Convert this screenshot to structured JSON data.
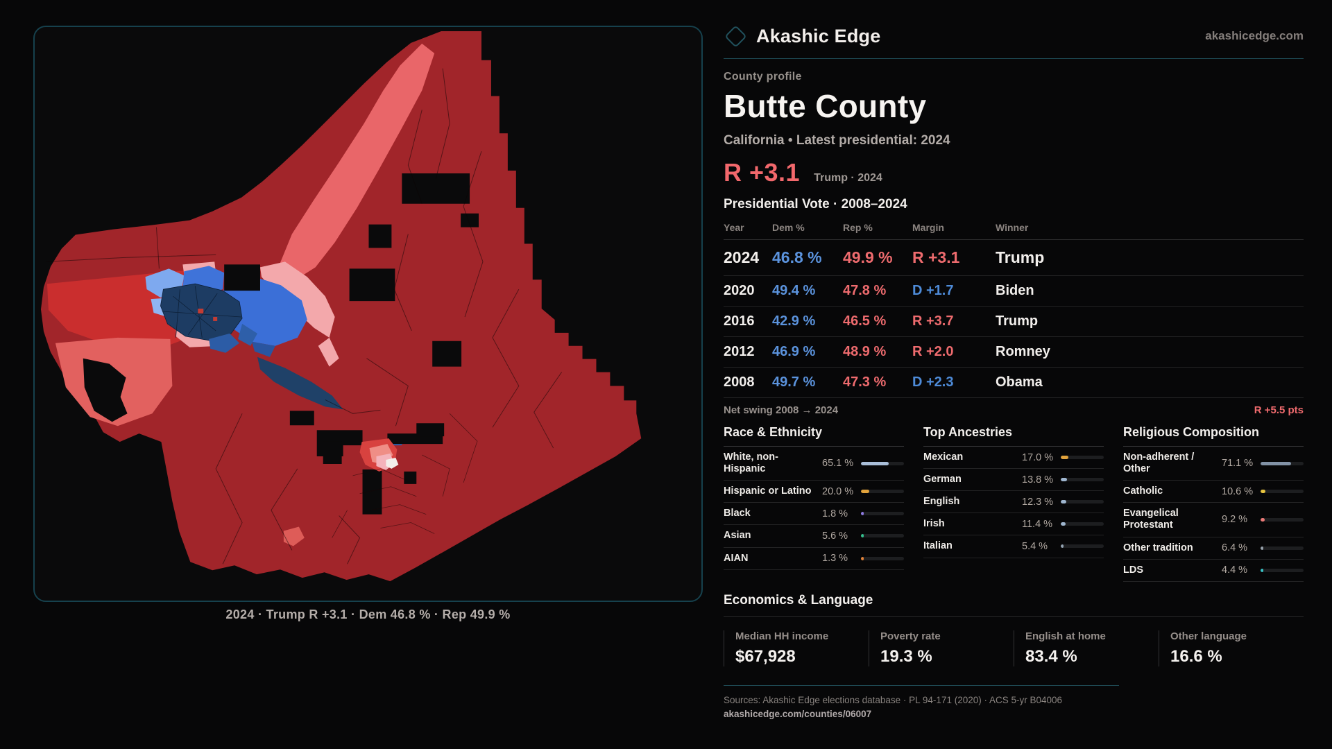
{
  "brand": {
    "name": "Akashic Edge",
    "domain": "akashicedge.com",
    "icon": "diamond-logo"
  },
  "profile": {
    "eyebrow": "County profile",
    "title": "Butte County",
    "subtitle": "California • Latest presidential: 2024",
    "margin_value": "R +3.1",
    "margin_context": "Trump · 2024"
  },
  "elections": {
    "heading": "Presidential Vote · 2008–2024",
    "columns": {
      "year": "Year",
      "dem": "Dem %",
      "rep": "Rep %",
      "margin": "Margin",
      "winner": "Winner"
    },
    "rows": [
      {
        "year": "2024",
        "dem": "46.8 %",
        "rep": "49.9 %",
        "margin": "R +3.1",
        "party": "R",
        "winner": "Trump"
      },
      {
        "year": "2020",
        "dem": "49.4 %",
        "rep": "47.8 %",
        "margin": "D +1.7",
        "party": "D",
        "winner": "Biden"
      },
      {
        "year": "2016",
        "dem": "42.9 %",
        "rep": "46.5 %",
        "margin": "R +3.7",
        "party": "R",
        "winner": "Trump"
      },
      {
        "year": "2012",
        "dem": "46.9 %",
        "rep": "48.9 %",
        "margin": "R +2.0",
        "party": "R",
        "winner": "Romney"
      },
      {
        "year": "2008",
        "dem": "49.7 %",
        "rep": "47.3 %",
        "margin": "D +2.3",
        "party": "D",
        "winner": "Obama"
      }
    ],
    "net_swing_label": "Net swing 2008 → 2024",
    "net_swing_value": "R +5.5 pts"
  },
  "race": {
    "heading": "Race & Ethnicity",
    "rows": [
      {
        "label": "White, non-Hispanic",
        "value": "65.1 %",
        "pct": 65.1,
        "color": "#a9bed8"
      },
      {
        "label": "Hispanic or Latino",
        "value": "20.0 %",
        "pct": 20.0,
        "color": "#e2a33c"
      },
      {
        "label": "Black",
        "value": "1.8 %",
        "pct": 1.8,
        "color": "#8d7ae0"
      },
      {
        "label": "Asian",
        "value": "5.6 %",
        "pct": 5.6,
        "color": "#35c08e"
      },
      {
        "label": "AIAN",
        "value": "1.3 %",
        "pct": 1.3,
        "color": "#e0823a"
      }
    ]
  },
  "ancestries": {
    "heading": "Top Ancestries",
    "rows": [
      {
        "label": "Mexican",
        "value": "17.0 %",
        "pct": 17.0,
        "color": "#e2a33c"
      },
      {
        "label": "German",
        "value": "13.8 %",
        "pct": 13.8,
        "color": "#9fb6cf"
      },
      {
        "label": "English",
        "value": "12.3 %",
        "pct": 12.3,
        "color": "#9fb6cf"
      },
      {
        "label": "Irish",
        "value": "11.4 %",
        "pct": 11.4,
        "color": "#9fb6cf"
      },
      {
        "label": "Italian",
        "value": "5.4 %",
        "pct": 5.4,
        "color": "#93a2b0"
      }
    ]
  },
  "religion": {
    "heading": "Religious Composition",
    "rows": [
      {
        "label": "Non-adherent / Other",
        "value": "71.1 %",
        "pct": 71.1,
        "color": "#8292a6"
      },
      {
        "label": "Catholic",
        "value": "10.6 %",
        "pct": 10.6,
        "color": "#e7c43f"
      },
      {
        "label": "Evangelical Protestant",
        "value": "9.2 %",
        "pct": 9.2,
        "color": "#ea7a77"
      },
      {
        "label": "Other tradition",
        "value": "6.4 %",
        "pct": 6.4,
        "color": "#97a1ab"
      },
      {
        "label": "LDS",
        "value": "4.4 %",
        "pct": 4.4,
        "color": "#39c2c5"
      }
    ]
  },
  "economics": {
    "heading": "Economics & Language",
    "stats": [
      {
        "label": "Median HH income",
        "value": "$67,928"
      },
      {
        "label": "Poverty rate",
        "value": "19.3 %"
      },
      {
        "label": "English at home",
        "value": "83.4 %"
      },
      {
        "label": "Other language",
        "value": "16.6 %"
      }
    ]
  },
  "map": {
    "caption": "2024 · Trump R +3.1 · Dem 46.8 % · Rep 49.9 %"
  },
  "footer": {
    "sources": "Sources: Akashic Edge elections database · PL 94-171 (2020) · ACS 5-yr B04006",
    "permalink": "akashicedge.com/counties/06007"
  },
  "palette": {
    "accent_teal": "#1f4c57",
    "brand_outline": "#21525e",
    "dem_blue": "#5b93dd",
    "rep_red": "#ee6b6e",
    "map_strong_rep": "#a1252a",
    "map_bright_rep": "#ca2e2e",
    "map_lean_rep": "#e96669",
    "map_tilt_rep": "#f3a8ab",
    "map_dem": "#3b6fd7",
    "map_strong_dem": "#1d3c63"
  }
}
